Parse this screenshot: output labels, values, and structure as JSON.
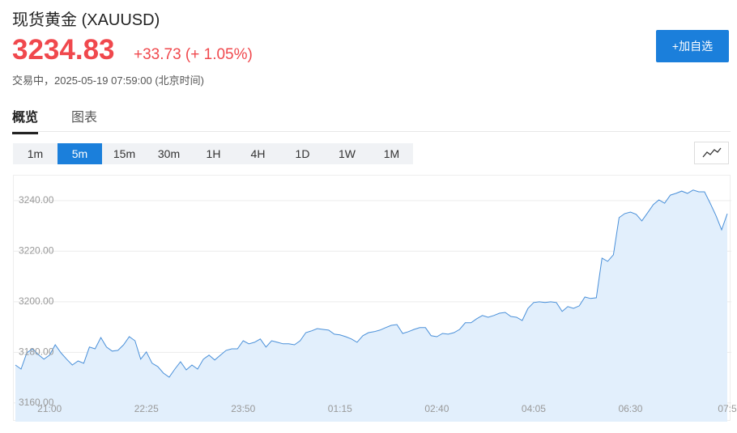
{
  "header": {
    "title": "现货黄金",
    "symbol": "(XAUUSD)",
    "price": "3234.83",
    "change": "+33.73 (+ 1.05%)",
    "status": "交易中，2025-05-19 07:59:00 (北京时间)",
    "button": "+加自选"
  },
  "tabs": [
    "概览",
    "图表"
  ],
  "active_tab": 0,
  "intervals": [
    "1m",
    "5m",
    "15m",
    "30m",
    "1H",
    "4H",
    "1D",
    "1W",
    "1M"
  ],
  "active_interval": 1,
  "chart_data": {
    "type": "line",
    "color": "#4a90d9",
    "fill": "#e2effc",
    "grid": true,
    "ylim": [
      3152.6,
      3249.9
    ],
    "yticks": [
      {
        "value": 3160,
        "label": "3160.00"
      },
      {
        "value": 3180,
        "label": "3180.00"
      },
      {
        "value": 3200,
        "label": "3200.00"
      },
      {
        "value": 3220,
        "label": "3220.00"
      },
      {
        "value": 3240,
        "label": "3240.00"
      }
    ],
    "categories": [
      null,
      null,
      null,
      null,
      null,
      null,
      "21:00",
      null,
      null,
      null,
      null,
      null,
      null,
      null,
      null,
      null,
      null,
      null,
      null,
      null,
      null,
      null,
      null,
      "22:25",
      null,
      null,
      null,
      null,
      null,
      null,
      null,
      null,
      null,
      null,
      null,
      null,
      null,
      null,
      null,
      null,
      "23:50",
      null,
      null,
      null,
      null,
      null,
      null,
      null,
      null,
      null,
      null,
      null,
      null,
      null,
      null,
      null,
      null,
      "01:15",
      null,
      null,
      null,
      null,
      null,
      null,
      null,
      null,
      null,
      null,
      null,
      null,
      null,
      null,
      null,
      null,
      "02:40",
      null,
      null,
      null,
      null,
      null,
      null,
      null,
      null,
      null,
      null,
      null,
      null,
      null,
      null,
      null,
      null,
      "04:05",
      null,
      null,
      null,
      null,
      null,
      null,
      null,
      null,
      null,
      null,
      null,
      null,
      null,
      null,
      null,
      null,
      "06:30",
      null,
      null,
      null,
      null,
      null,
      null,
      null,
      null,
      null,
      null,
      null,
      null,
      null,
      null,
      null,
      null,
      "07:5"
    ],
    "values": [
      3175.0,
      3173.4,
      3179.8,
      3181.4,
      3179.2,
      3177.3,
      3178.9,
      3183.0,
      3179.8,
      3177.3,
      3175.0,
      3176.6,
      3175.7,
      3182.1,
      3181.4,
      3185.9,
      3182.1,
      3180.5,
      3180.8,
      3183.0,
      3186.2,
      3184.6,
      3177.3,
      3180.2,
      3175.7,
      3174.4,
      3171.8,
      3170.2,
      3173.4,
      3176.3,
      3173.1,
      3175.0,
      3173.4,
      3177.3,
      3178.9,
      3177.0,
      3178.9,
      3180.8,
      3181.4,
      3181.4,
      3184.6,
      3183.4,
      3184.0,
      3185.3,
      3182.1,
      3184.6,
      3184.0,
      3183.4,
      3183.4,
      3183.0,
      3184.6,
      3187.8,
      3188.5,
      3189.4,
      3189.1,
      3188.8,
      3187.2,
      3186.9,
      3186.2,
      3185.3,
      3184.0,
      3186.6,
      3187.8,
      3188.2,
      3188.8,
      3189.8,
      3190.7,
      3191.0,
      3187.5,
      3188.2,
      3189.1,
      3189.8,
      3189.8,
      3186.6,
      3186.2,
      3187.5,
      3187.2,
      3187.8,
      3189.1,
      3191.7,
      3191.7,
      3193.3,
      3194.6,
      3193.9,
      3194.6,
      3195.5,
      3195.8,
      3194.2,
      3193.9,
      3192.6,
      3197.4,
      3199.7,
      3200.0,
      3199.7,
      3200.0,
      3199.7,
      3196.2,
      3198.1,
      3197.4,
      3198.4,
      3201.9,
      3201.3,
      3201.6,
      3217.3,
      3216.0,
      3218.6,
      3233.3,
      3234.9,
      3235.5,
      3234.6,
      3232.0,
      3235.2,
      3238.4,
      3240.3,
      3239.0,
      3242.2,
      3242.9,
      3243.8,
      3242.9,
      3244.2,
      3243.5,
      3243.5,
      3239.0,
      3234.2,
      3228.5,
      3234.83
    ]
  }
}
